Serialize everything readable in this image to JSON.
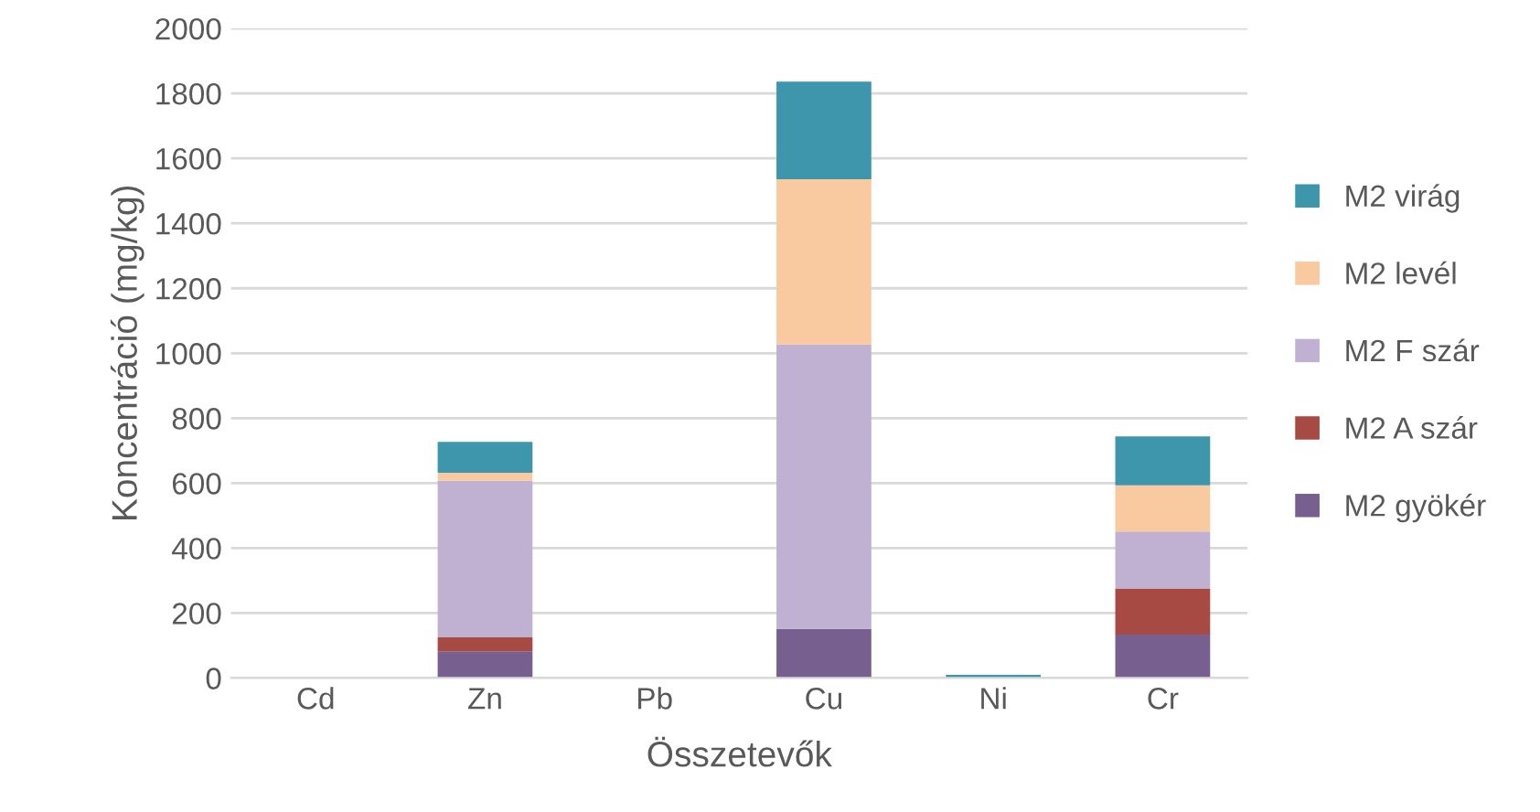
{
  "chart_data": {
    "type": "bar",
    "stacked": true,
    "xlabel": "Összetevők",
    "ylabel": "Koncentráció (mg/kg)",
    "categories": [
      "Cd",
      "Zn",
      "Pb",
      "Cu",
      "Ni",
      "Cr"
    ],
    "series": [
      {
        "name": "M2 gyökér",
        "color": "#775f8f",
        "values": [
          0,
          82,
          0,
          151,
          0,
          134
        ]
      },
      {
        "name": "M2 A szár",
        "color": "#a84a44",
        "values": [
          0,
          43,
          0,
          0,
          0,
          142
        ]
      },
      {
        "name": "M2 F szár",
        "color": "#c0b1d3",
        "values": [
          0,
          482,
          0,
          876,
          0,
          175
        ]
      },
      {
        "name": "M2 levél",
        "color": "#f9c9a0",
        "values": [
          0,
          25,
          0,
          509,
          0,
          142
        ]
      },
      {
        "name": "M2 virág",
        "color": "#3d96ab",
        "values": [
          0,
          95,
          0,
          300,
          10,
          151
        ]
      }
    ],
    "ylim": [
      0,
      2000
    ],
    "yticks": [
      0,
      200,
      400,
      600,
      800,
      1000,
      1200,
      1400,
      1600,
      1800,
      2000
    ],
    "grid": "y",
    "legend": "right"
  }
}
